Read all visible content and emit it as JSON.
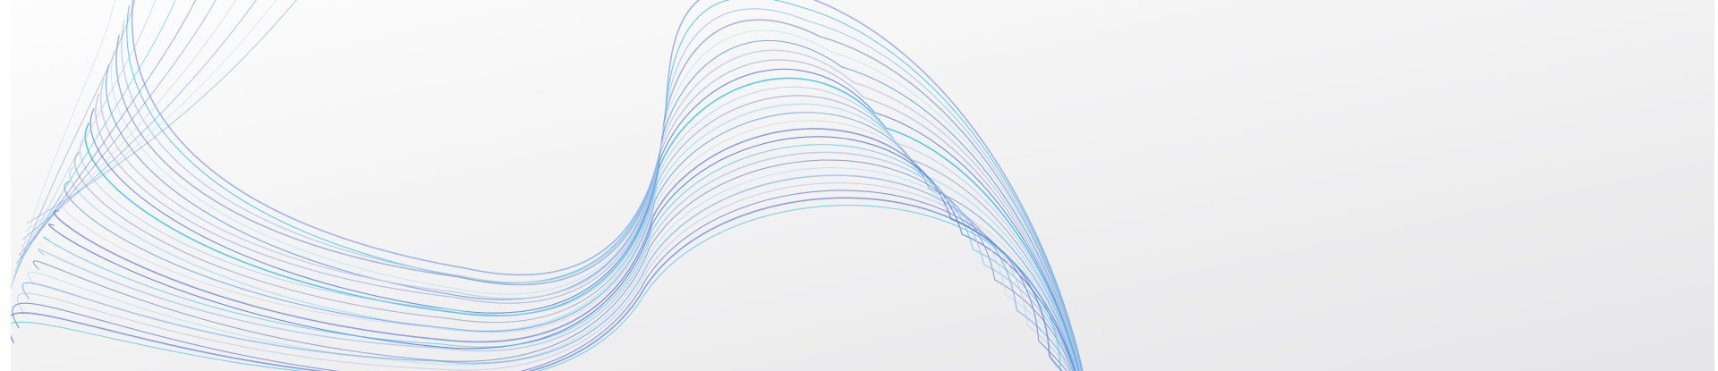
{
  "colors": {
    "background_start": "#fdfdfd",
    "background_end": "#e6e6e8",
    "wave_palette": [
      "#5b7fe0",
      "#4cc6ea",
      "#a9c7f2",
      "#8fa0c8",
      "#b7e3f3",
      "#6aa7e6",
      "#c9cde6",
      "#7d92d8"
    ]
  }
}
